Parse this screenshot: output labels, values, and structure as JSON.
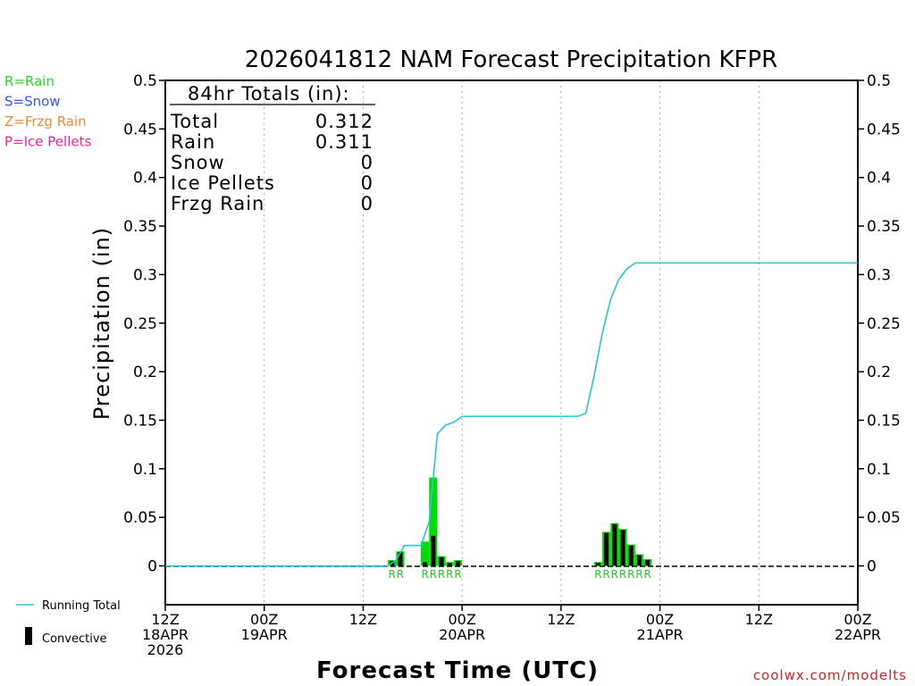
{
  "chart_data": {
    "type": "bar",
    "title": "2026041812 NAM Forecast Precipitation KFPR",
    "xlabel": "Forecast Time (UTC)",
    "ylabel": "Precipitation (in)",
    "x_units": "forecast hour",
    "xlim": [
      0,
      84
    ],
    "ylim": [
      -0.04,
      0.5
    ],
    "yticks": [
      0,
      0.05,
      0.1,
      0.15,
      0.2,
      0.25,
      0.3,
      0.35,
      0.4,
      0.45,
      0.5
    ],
    "ytick_labels": [
      "0",
      "0.05",
      "0.1",
      "0.15",
      "0.2",
      "0.25",
      "0.3",
      "0.35",
      "0.4",
      "0.45",
      "0.5"
    ],
    "xticks": [
      {
        "hour": 0,
        "line1": "12Z",
        "line2": "18APR",
        "line3": "2026"
      },
      {
        "hour": 12,
        "line1": "00Z",
        "line2": "19APR",
        "line3": ""
      },
      {
        "hour": 24,
        "line1": "12Z",
        "line2": "",
        "line3": ""
      },
      {
        "hour": 36,
        "line1": "00Z",
        "line2": "20APR",
        "line3": ""
      },
      {
        "hour": 48,
        "line1": "12Z",
        "line2": "",
        "line3": ""
      },
      {
        "hour": 60,
        "line1": "00Z",
        "line2": "21APR",
        "line3": ""
      },
      {
        "hour": 72,
        "line1": "12Z",
        "line2": "",
        "line3": ""
      },
      {
        "hour": 84,
        "line1": "00Z",
        "line2": "22APR",
        "line3": ""
      }
    ],
    "series": [
      {
        "name": "Rain",
        "bar_hours": [
          28,
          29,
          32,
          33,
          34,
          35,
          36,
          53,
          54,
          55,
          56,
          57,
          58,
          59
        ],
        "values": [
          0.006,
          0.015,
          0.025,
          0.091,
          0.01,
          0.004,
          0.006,
          0.004,
          0.035,
          0.044,
          0.038,
          0.022,
          0.012,
          0.007
        ]
      },
      {
        "name": "Convective",
        "bar_hours": [
          28,
          29,
          32,
          33,
          34,
          35,
          36,
          53,
          54,
          55,
          56,
          57,
          58,
          59
        ],
        "values": [
          0.005,
          0.014,
          0.004,
          0.031,
          0.009,
          0.003,
          0.005,
          0.003,
          0.034,
          0.043,
          0.037,
          0.021,
          0.011,
          0.006
        ]
      },
      {
        "name": "Running Total",
        "x": [
          0,
          27,
          28,
          29,
          31,
          32,
          32.5,
          33,
          34,
          35,
          36,
          37,
          50,
          51,
          52,
          53,
          54,
          55,
          56,
          57,
          58,
          84
        ],
        "values": [
          0,
          0,
          0.006,
          0.021,
          0.021,
          0.045,
          0.09,
          0.136,
          0.145,
          0.148,
          0.154,
          0.154,
          0.154,
          0.157,
          0.195,
          0.239,
          0.274,
          0.295,
          0.306,
          0.312,
          0.312,
          0.312
        ]
      }
    ],
    "ptype_labels": [
      {
        "hour": 28,
        "text": "R"
      },
      {
        "hour": 29,
        "text": "R"
      },
      {
        "hour": 32,
        "text": "R"
      },
      {
        "hour": 33,
        "text": "R"
      },
      {
        "hour": 34,
        "text": "R"
      },
      {
        "hour": 35,
        "text": "R"
      },
      {
        "hour": 36,
        "text": "R"
      },
      {
        "hour": 53,
        "text": "R"
      },
      {
        "hour": 54,
        "text": "R"
      },
      {
        "hour": 55,
        "text": "R"
      },
      {
        "hour": 56,
        "text": "R"
      },
      {
        "hour": 57,
        "text": "R"
      },
      {
        "hour": 58,
        "text": "R"
      },
      {
        "hour": 59,
        "text": "R"
      }
    ]
  },
  "totals": {
    "header": "84hr Totals (in):",
    "rows": [
      {
        "label": "Total",
        "value": "0.312"
      },
      {
        "label": "Rain",
        "value": "0.311"
      },
      {
        "label": "Snow",
        "value": "0"
      },
      {
        "label": "Ice Pellets",
        "value": "0"
      },
      {
        "label": "Frzg Rain",
        "value": "0"
      }
    ]
  },
  "ptype_key": [
    {
      "text": "R=Rain",
      "color": "#22dd22"
    },
    {
      "text": "S=Snow",
      "color": "#3355ee"
    },
    {
      "text": "Z=Frzg Rain",
      "color": "#ee8833"
    },
    {
      "text": "P=Ice Pellets",
      "color": "#ee2299"
    }
  ],
  "legend": {
    "running_total": "Running Total",
    "convective": "Convective"
  },
  "credit": "coolwx.com/modelts",
  "colors": {
    "rain": "#00dd00",
    "convective": "#000000",
    "running_total": "#22c8d8",
    "grid": "#aaaaaa",
    "ptype_label": "#22cc22",
    "credit": "#cc2222"
  }
}
